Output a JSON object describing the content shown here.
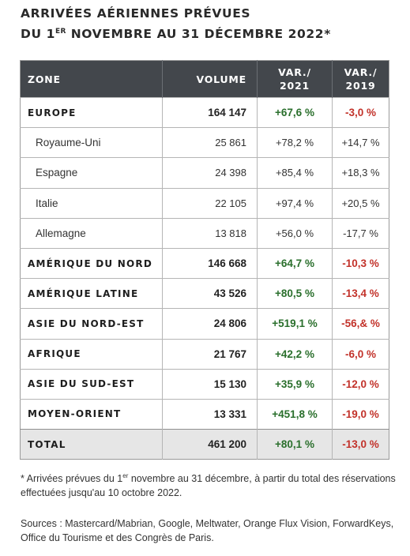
{
  "title": {
    "line1": "ARRIVÉES AÉRIENNES PRÉVUES",
    "line2_prefix": "DU 1",
    "line2_sup": "ER",
    "line2_suffix": " NOVEMBRE AU 31 DÉCEMBRE 2022*"
  },
  "table": {
    "headers": {
      "zone": "ZONE",
      "volume": "VOLUME",
      "var2021_line1": "VAR./",
      "var2021_line2": "2021",
      "var2019_line1": "VAR./",
      "var2019_line2": "2019"
    },
    "rows": [
      {
        "zone": "EUROPE",
        "volume": "164 147",
        "var2021": "+67,6 %",
        "var2019": "-3,0 %",
        "level": "major"
      },
      {
        "zone": "Royaume-Uni",
        "volume": "25 861",
        "var2021": "+78,2 %",
        "var2019": "+14,7 %",
        "level": "sub"
      },
      {
        "zone": "Espagne",
        "volume": "24 398",
        "var2021": "+85,4 %",
        "var2019": "+18,3 %",
        "level": "sub"
      },
      {
        "zone": "Italie",
        "volume": "22 105",
        "var2021": "+97,4 %",
        "var2019": "+20,5 %",
        "level": "sub"
      },
      {
        "zone": "Allemagne",
        "volume": "13 818",
        "var2021": "+56,0 %",
        "var2019": "-17,7 %",
        "level": "sub"
      },
      {
        "zone": "AMÉRIQUE DU NORD",
        "volume": "146 668",
        "var2021": "+64,7 %",
        "var2019": "-10,3 %",
        "level": "major"
      },
      {
        "zone": "AMÉRIQUE LATINE",
        "volume": "43 526",
        "var2021": "+80,5 %",
        "var2019": "-13,4 %",
        "level": "major"
      },
      {
        "zone": "ASIE DU NORD-EST",
        "volume": "24 806",
        "var2021": "+519,1 %",
        "var2019": "-56,& %",
        "level": "major"
      },
      {
        "zone": "AFRIQUE",
        "volume": "21 767",
        "var2021": "+42,2 %",
        "var2019": "-6,0 %",
        "level": "major"
      },
      {
        "zone": "ASIE DU SUD-EST",
        "volume": "15 130",
        "var2021": "+35,9 %",
        "var2019": "-12,0 %",
        "level": "major"
      },
      {
        "zone": "MOYEN-ORIENT",
        "volume": "13 331",
        "var2021": "+451,8 %",
        "var2019": "-19,0 %",
        "level": "major"
      }
    ],
    "total": {
      "zone": "TOTAL",
      "volume": "461 200",
      "var2021": "+80,1 %",
      "var2019": "-13,0 %"
    }
  },
  "footnote": {
    "prefix": "* Arrivées prévues du 1",
    "sup": "er",
    "suffix": " novembre au 31 décembre, à partir du total des réservations effectuées jusqu'au 10 octobre 2022."
  },
  "sources": "Sources : Mastercard/Mabrian, Google, Meltwater, Orange Flux Vision, ForwardKeys, Office du Tourisme et des Congrès de Paris.",
  "colors": {
    "header_bg": "#43474c",
    "positive": "#2e7d32",
    "negative": "#c0392b",
    "total_bg": "#e6e6e6"
  }
}
